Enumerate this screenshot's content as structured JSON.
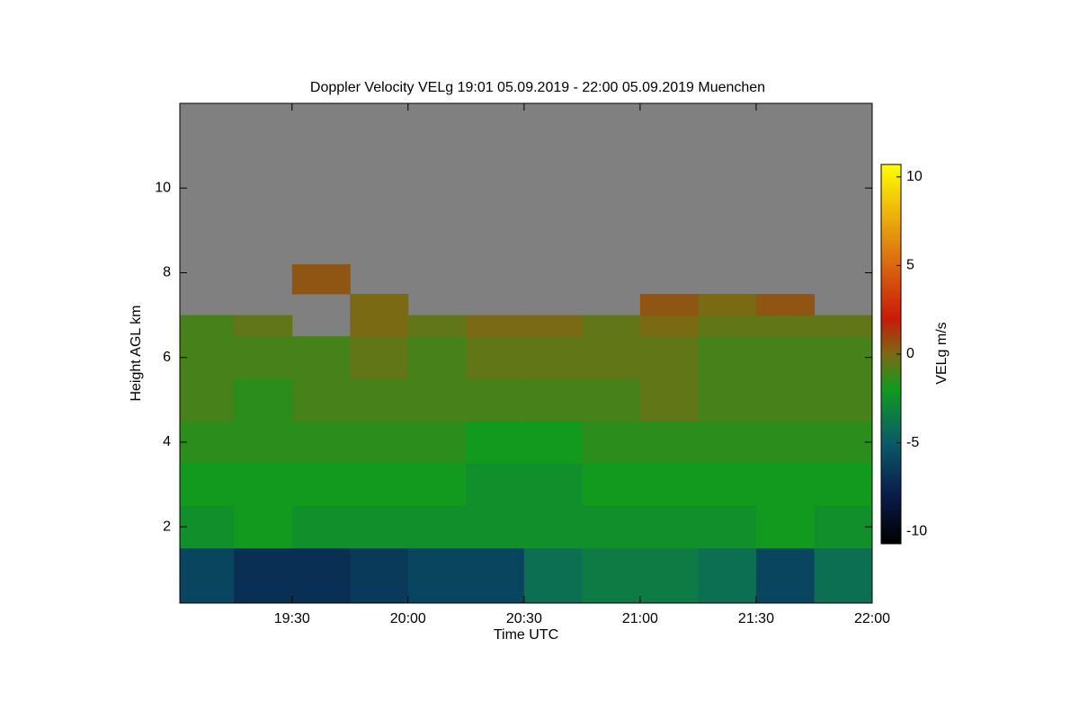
{
  "chart_data": {
    "type": "heatmap",
    "title": "Doppler Velocity VELg   19:01 05.09.2019 - 22:00 05.09.2019 Muenchen",
    "xlabel": "Time UTC",
    "ylabel": "Height AGL km",
    "colorbar_label": "VELg m/s",
    "xlim": [
      19.0167,
      22.0
    ],
    "xticks": [
      {
        "value": 19.5,
        "label": "19:30"
      },
      {
        "value": 20.0,
        "label": "20:00"
      },
      {
        "value": 20.5,
        "label": "20:30"
      },
      {
        "value": 21.0,
        "label": "21:00"
      },
      {
        "value": 21.5,
        "label": "21:30"
      },
      {
        "value": 22.0,
        "label": "22:00"
      }
    ],
    "ylim": [
      0.2,
      12.0
    ],
    "yticks": [
      2,
      4,
      6,
      8,
      10
    ],
    "clim": [
      -10.7,
      10.7
    ],
    "cticks": [
      10,
      5,
      0,
      -5,
      -10
    ],
    "nan_color": "#808080",
    "colormap": [
      {
        "value": -10.7,
        "color": "#000000"
      },
      {
        "value": -8,
        "color": "#0a1a4a"
      },
      {
        "value": -5,
        "color": "#0a5a6a"
      },
      {
        "value": -2,
        "color": "#119a1e"
      },
      {
        "value": 0,
        "color": "#7a6a14"
      },
      {
        "value": 2,
        "color": "#c81a0a"
      },
      {
        "value": 6,
        "color": "#e08010"
      },
      {
        "value": 10.7,
        "color": "#ffff00"
      }
    ],
    "x_edges": [
      19.0167,
      19.25,
      19.5,
      19.75,
      20.0,
      20.25,
      20.5,
      20.75,
      21.0,
      21.25,
      21.5,
      21.75,
      22.0
    ],
    "y_edges": [
      0.2,
      1.5,
      2.5,
      3.5,
      4.5,
      5.5,
      6.5,
      7.0,
      7.5,
      8.2,
      12.0
    ],
    "z": [
      [
        -6,
        -7,
        -7,
        -6.5,
        -6,
        -6,
        -4,
        -3.5,
        -3.5,
        -4,
        -6,
        -4
      ],
      [
        -2.5,
        -2,
        -2.5,
        -2.5,
        -2.5,
        -2.5,
        -2.5,
        -2.5,
        -2.5,
        -2.5,
        -2,
        -2.5
      ],
      [
        -2,
        -2,
        -2,
        -2,
        -2,
        -2.5,
        -2.5,
        -2,
        -2,
        -2,
        -2,
        -2
      ],
      [
        -1.5,
        -1.5,
        -1.5,
        -1.5,
        -1.5,
        -2,
        -2,
        -1.5,
        -1.5,
        -1.5,
        -1.5,
        -1.5
      ],
      [
        -1,
        -1.5,
        -1,
        -1,
        -1,
        -1,
        -1,
        -1,
        -0.5,
        -1,
        -1,
        -1
      ],
      [
        -1,
        -1,
        -1,
        -0.5,
        -1,
        -0.5,
        -0.5,
        -0.5,
        -0.5,
        -1,
        -1,
        -1
      ],
      [
        -1,
        -0.5,
        null,
        0,
        -0.5,
        0,
        0,
        -0.5,
        0,
        -0.5,
        -0.5,
        -0.5
      ],
      [
        null,
        null,
        null,
        0,
        null,
        null,
        null,
        null,
        0.5,
        0,
        0.5,
        null
      ],
      [
        null,
        null,
        0.5,
        null,
        null,
        null,
        null,
        null,
        null,
        null,
        null,
        null
      ],
      [
        null,
        null,
        null,
        null,
        null,
        null,
        null,
        null,
        null,
        null,
        null,
        null
      ]
    ]
  }
}
